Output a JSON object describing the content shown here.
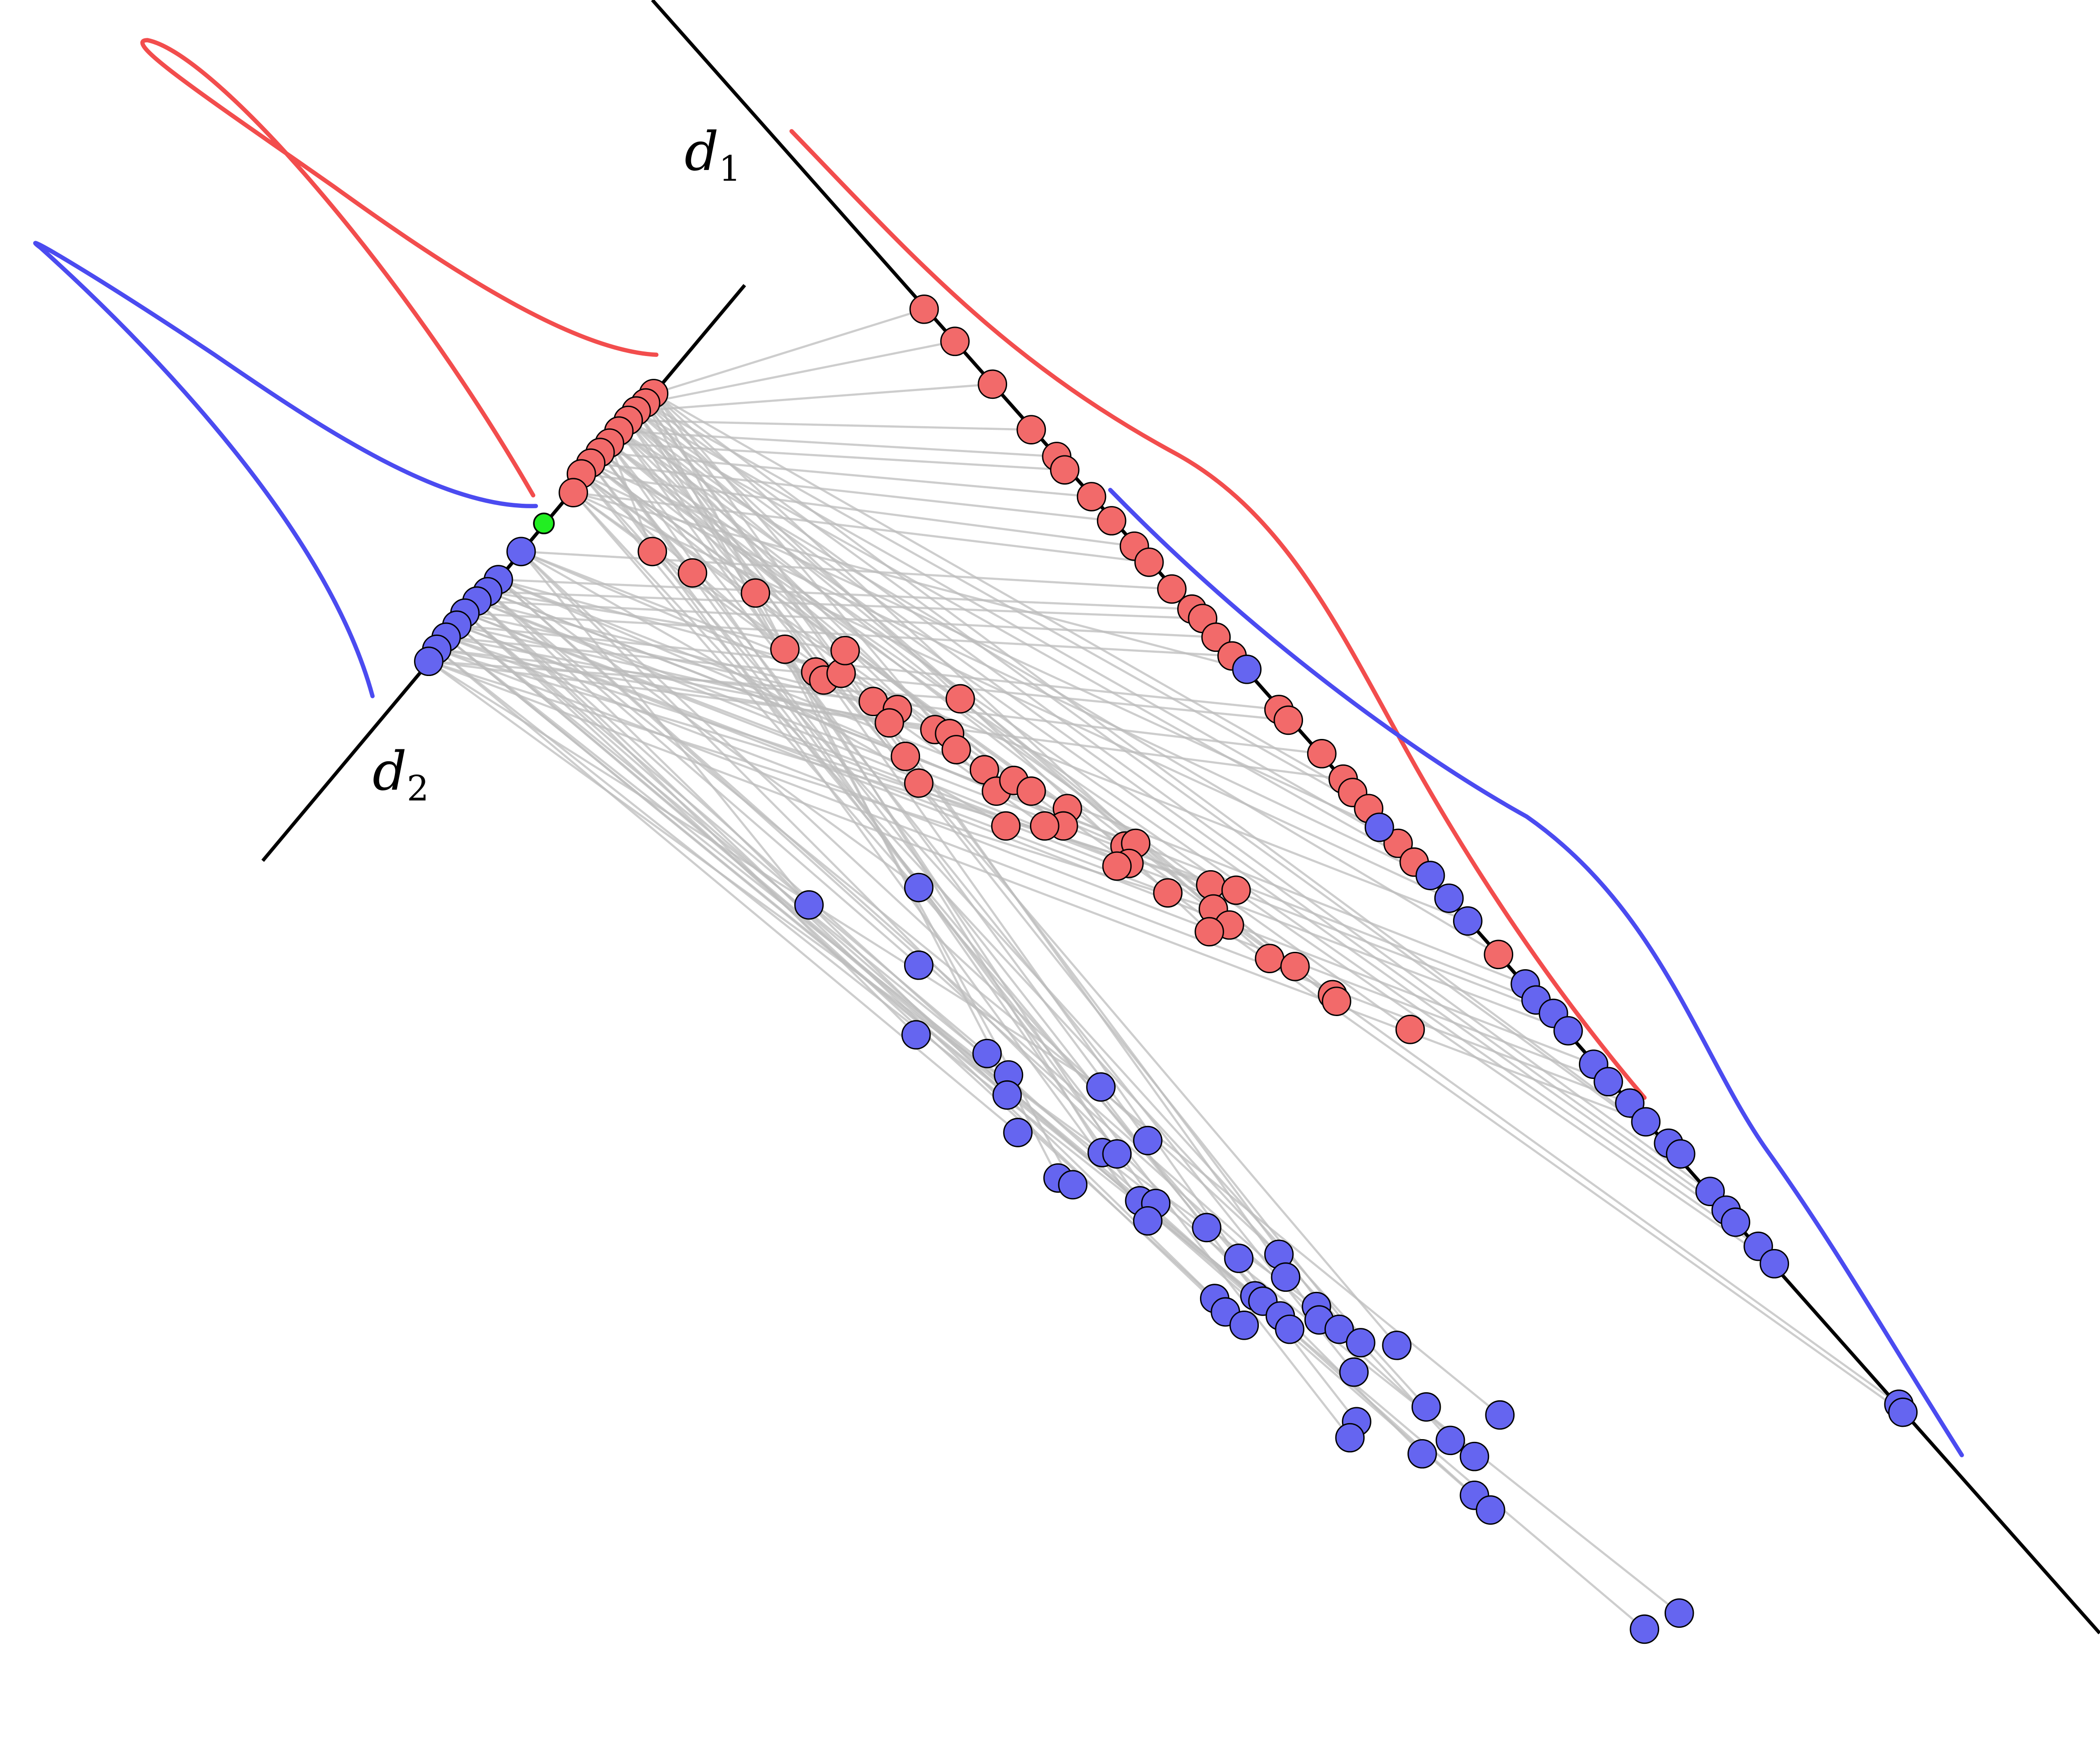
{
  "axes": {
    "d1": {
      "label": "d",
      "subscript": "1"
    },
    "d2": {
      "label": "d",
      "subscript": "2"
    }
  },
  "colors": {
    "class_a": "#f26a6a",
    "class_b": "#6565f0",
    "density_a": "#f24d4d",
    "density_b": "#4b4bf0",
    "origin_marker": "#22ee22",
    "projection_line": "#bdbdbd"
  }
}
